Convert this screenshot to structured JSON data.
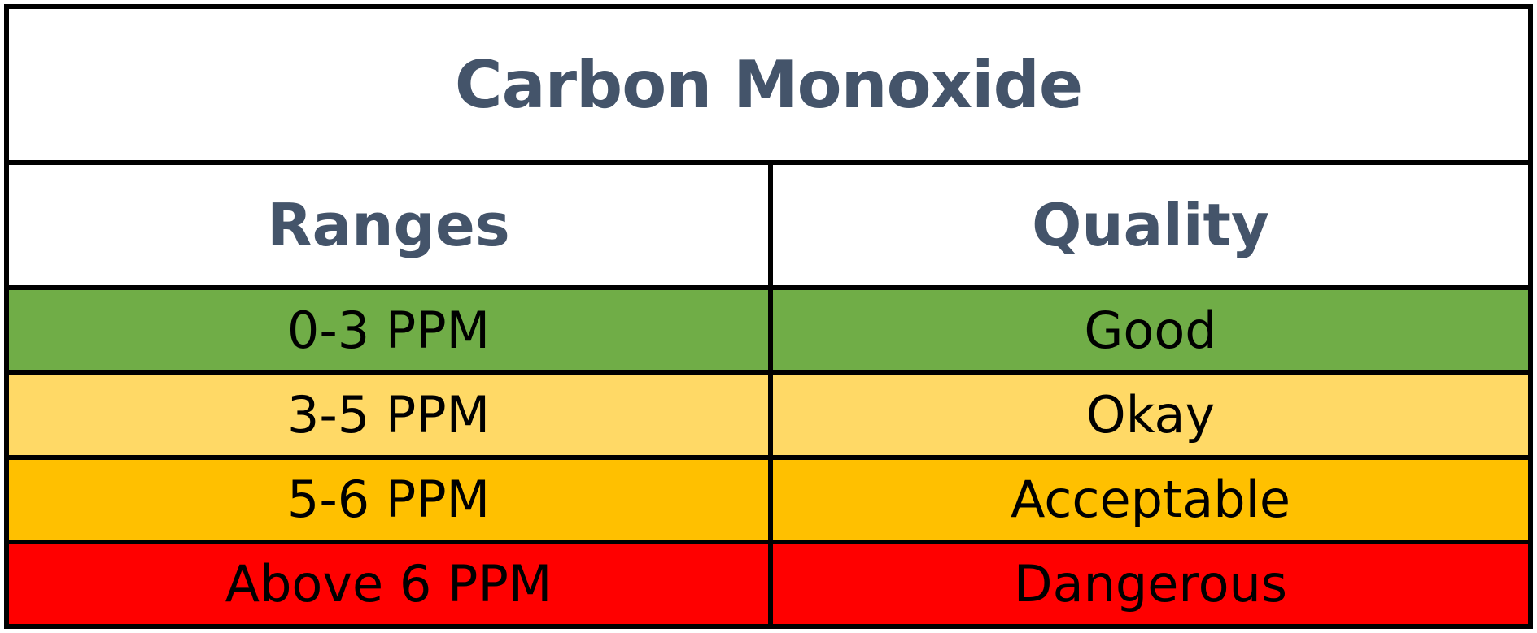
{
  "title": "Carbon Monoxide",
  "columns": {
    "range_header": "Ranges",
    "quality_header": "Quality"
  },
  "rows": [
    {
      "range": "0-3 PPM",
      "quality": "Good",
      "color": "#70ad47"
    },
    {
      "range": "3-5 PPM",
      "quality": "Okay",
      "color": "#ffd966"
    },
    {
      "range": "5-6 PPM",
      "quality": "Acceptable",
      "color": "#ffc000"
    },
    {
      "range": "Above 6 PPM",
      "quality": "Dangerous",
      "color": "#ff0000"
    }
  ]
}
